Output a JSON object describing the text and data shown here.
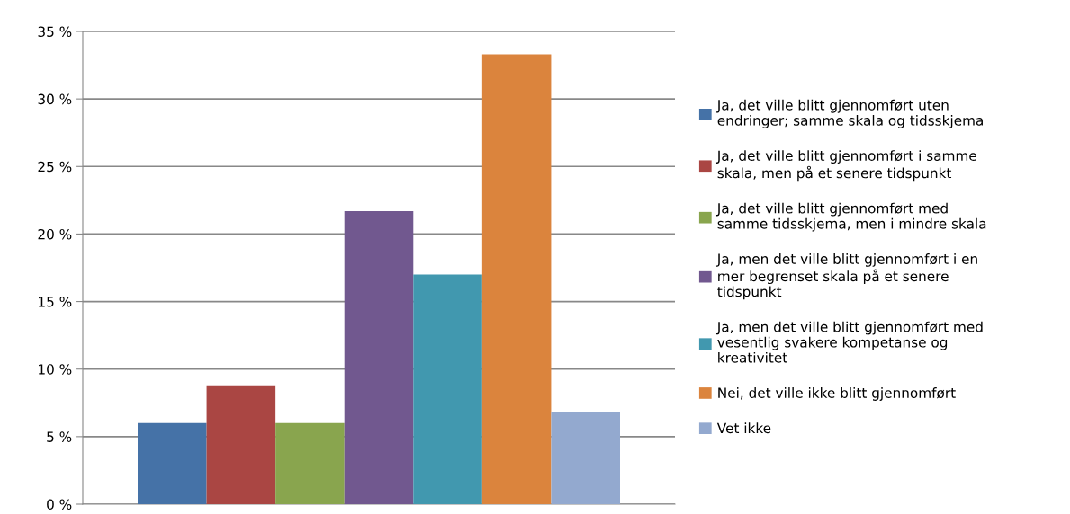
{
  "chart_data": {
    "type": "bar",
    "categories": [
      null
    ],
    "series": [
      {
        "name": "Ja, det ville blitt gjennomført uten\nendringer; samme skala og tidsskjema",
        "color": "#4572a7",
        "values": [
          6.0
        ]
      },
      {
        "name": "Ja, det ville blitt gjennomført i samme\nskala, men på et senere tidspunkt",
        "color": "#aa4643",
        "values": [
          8.8
        ]
      },
      {
        "name": "Ja, det ville blitt gjennomført med\nsamme tidsskjema, men i mindre skala",
        "color": "#89a54e",
        "values": [
          6.0
        ]
      },
      {
        "name": "Ja, men det ville blitt gjennomført i en\nmer begrenset skala på et senere\ntidspunkt",
        "color": "#71588f",
        "values": [
          21.7
        ]
      },
      {
        "name": "Ja, men det ville blitt gjennomført med\nvesentlig svakere kompetanse og\nkreativitet",
        "color": "#4198af",
        "values": [
          17.0
        ]
      },
      {
        "name": "Nei, det ville ikke blitt gjennomført",
        "color": "#db843d",
        "values": [
          33.3
        ]
      },
      {
        "name": "Vet ikke",
        "color": "#93a9cf",
        "values": [
          6.8
        ]
      }
    ],
    "ylim": [
      0,
      35
    ],
    "yticks": [
      {
        "value": 0,
        "label": "0 %"
      },
      {
        "value": 5,
        "label": "5 %"
      },
      {
        "value": 10,
        "label": "10 %"
      },
      {
        "value": 15,
        "label": "15 %"
      },
      {
        "value": 20,
        "label": "20 %"
      },
      {
        "value": 25,
        "label": "25 %"
      },
      {
        "value": 30,
        "label": "30 %"
      },
      {
        "value": 35,
        "label": "35 %"
      }
    ],
    "grid": "y",
    "legend": "right"
  }
}
